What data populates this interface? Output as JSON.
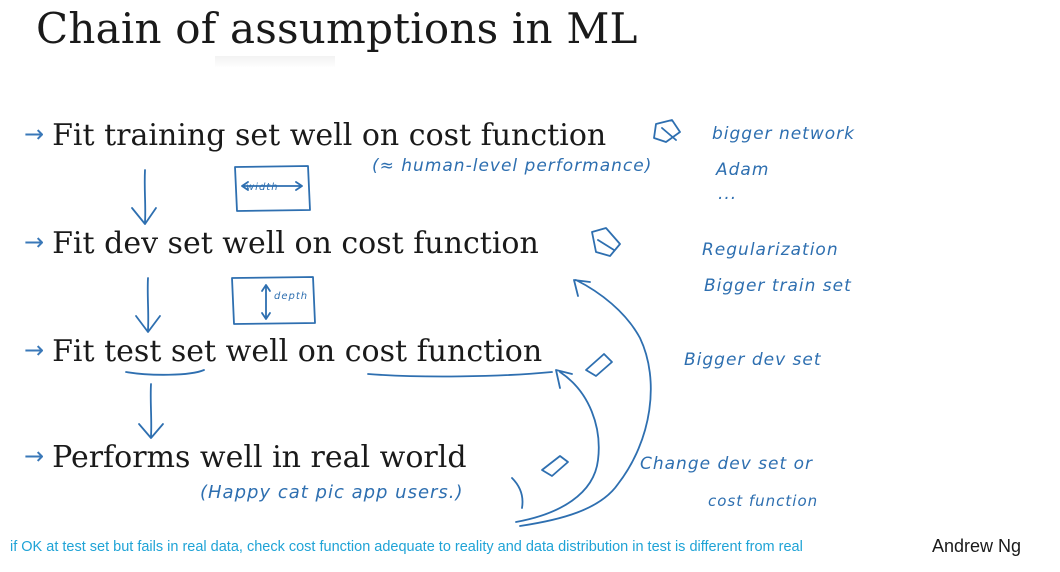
{
  "title": "Chain of assumptions in ML",
  "steps": [
    {
      "arrow": "→",
      "text": "Fit training set well on cost function"
    },
    {
      "arrow": "→",
      "text": "Fit dev set well on cost function"
    },
    {
      "arrow": "→",
      "text": "Fit test set well on cost function"
    },
    {
      "arrow": "→",
      "text": "Performs well in real world"
    }
  ],
  "handwritten": {
    "human_level": "(≈ human-level performance)",
    "width_box": "width",
    "depth_box": "depth",
    "knobs": [
      {
        "lines": [
          "bigger network",
          "Adam",
          "..."
        ]
      },
      {
        "lines": [
          "Regularization",
          "Bigger train set"
        ]
      },
      {
        "lines": [
          "Bigger dev set"
        ]
      },
      {
        "lines": [
          "Change dev set or",
          "cost function"
        ]
      }
    ],
    "happy_cat": "(Happy cat pic app users.)"
  },
  "caption": "if OK at test set but fails in real data, check cost function adequate to reality and data distribution in test is different from real",
  "author": "Andrew Ng",
  "colors": {
    "ink": "#2e6fb0",
    "caption": "#1fa3d6",
    "text": "#1a1a1a"
  }
}
